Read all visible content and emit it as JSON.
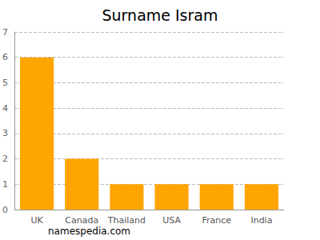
{
  "chart_data": {
    "type": "bar",
    "title": "Surname Isram",
    "categories": [
      "UK",
      "Canada",
      "Thailand",
      "USA",
      "France",
      "India"
    ],
    "values": [
      6,
      2,
      1,
      1,
      1,
      1
    ],
    "color": "#ffa500",
    "ylim": [
      0,
      7
    ],
    "yticks": [
      0,
      1,
      2,
      3,
      4,
      5,
      6,
      7
    ],
    "grid": true,
    "annotations": [
      "namespedia.com"
    ]
  }
}
